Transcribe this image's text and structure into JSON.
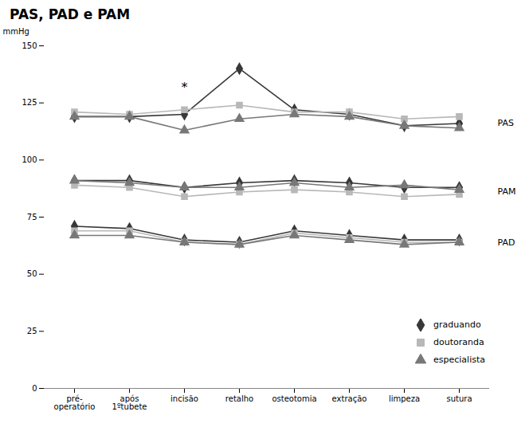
{
  "chart_data": {
    "type": "line",
    "title": "PAS, PAD e PAM",
    "ylabel": "mmHg",
    "categories": [
      "pré-\noperatório",
      "após\n1ºtubete",
      "incisão",
      "retalho",
      "osteotomia",
      "extração",
      "limpeza",
      "sutura"
    ],
    "ylim": [
      0,
      150
    ],
    "yticks": [
      0,
      25,
      50,
      75,
      100,
      125,
      150
    ],
    "series": [
      {
        "name": "graduando",
        "color": "#383838",
        "marker": "diamond",
        "values": [
          119,
          119,
          120,
          140,
          122,
          120,
          115,
          116
        ]
      },
      {
        "name": "doutoranda",
        "color": "#b8b8b8",
        "marker": "square",
        "values": [
          121,
          120,
          122,
          124,
          121,
          121,
          118,
          119
        ]
      },
      {
        "name": "especialista",
        "color": "#787878",
        "marker": "triangle",
        "values": [
          119,
          119,
          113,
          118,
          120,
          119,
          115,
          114
        ]
      },
      {
        "name": "graduando",
        "color": "#383838",
        "marker": "diamond",
        "values": [
          91,
          91,
          88,
          90,
          91,
          90,
          88,
          88
        ]
      },
      {
        "name": "doutoranda",
        "color": "#b8b8b8",
        "marker": "square",
        "values": [
          89,
          88,
          84,
          86,
          87,
          86,
          84,
          85
        ]
      },
      {
        "name": "especialista",
        "color": "#787878",
        "marker": "triangle",
        "values": [
          91,
          90,
          88,
          88,
          90,
          88,
          89,
          87
        ]
      },
      {
        "name": "graduando",
        "color": "#383838",
        "marker": "diamond",
        "values": [
          71,
          70,
          65,
          64,
          69,
          67,
          65,
          65
        ]
      },
      {
        "name": "doutoranda",
        "color": "#b8b8b8",
        "marker": "square",
        "values": [
          69,
          69,
          64,
          63,
          68,
          66,
          64,
          64
        ]
      },
      {
        "name": "especialista",
        "color": "#787878",
        "marker": "triangle",
        "values": [
          67,
          67,
          64,
          63,
          67,
          65,
          63,
          64
        ]
      }
    ],
    "annotations": [
      {
        "text": "*",
        "x": "incisão",
        "y": 130
      },
      {
        "text": "PAS",
        "y": 116
      },
      {
        "text": "PAM",
        "y": 86
      },
      {
        "text": "PAD",
        "y": 64
      }
    ],
    "legend": "lower right",
    "grid": false
  }
}
